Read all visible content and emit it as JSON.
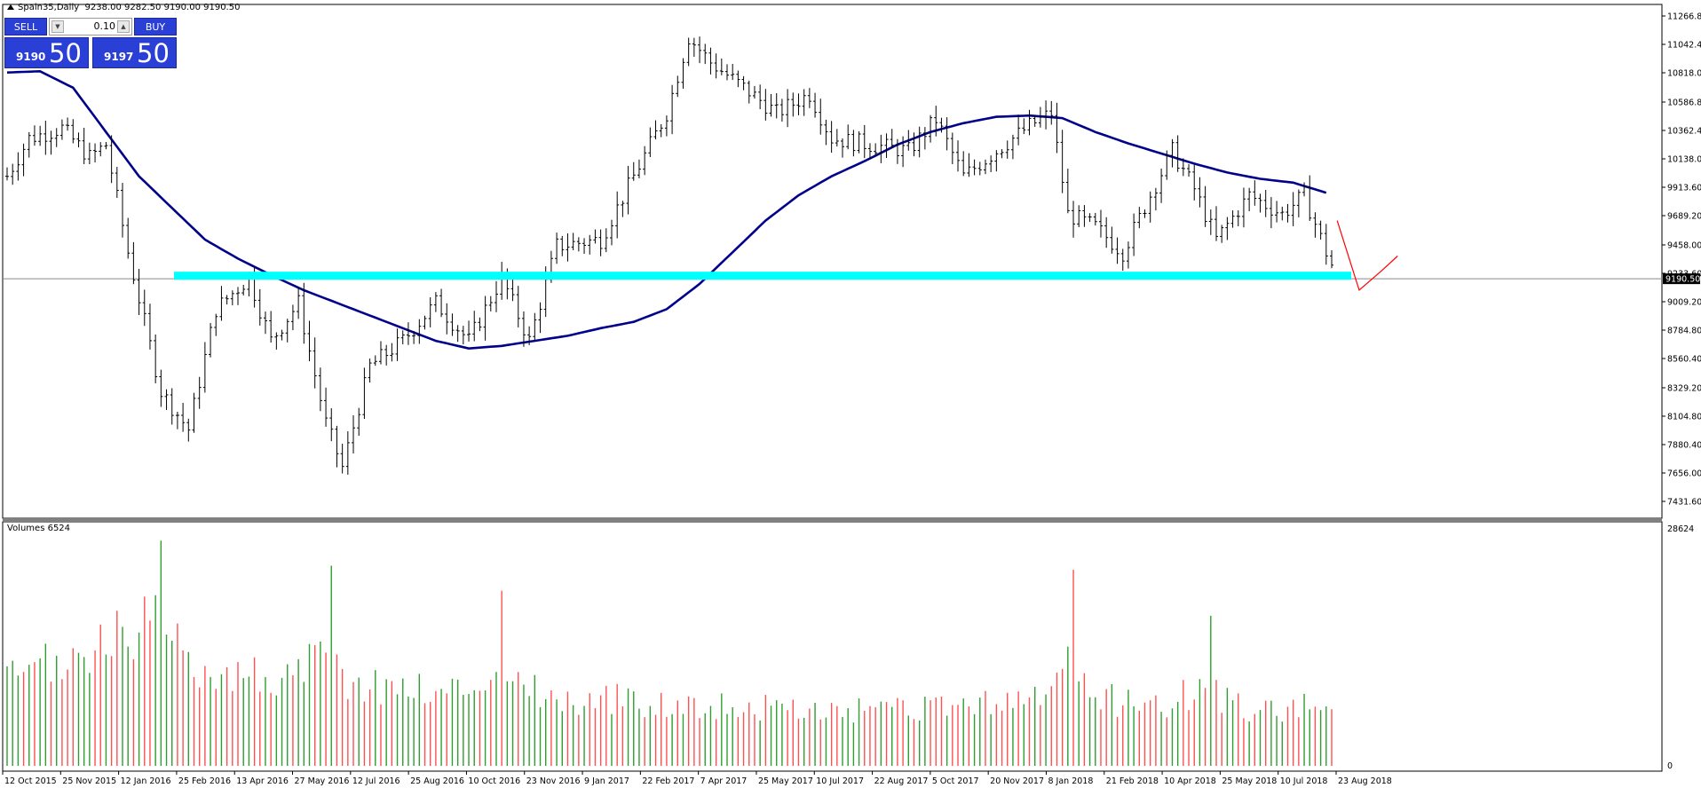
{
  "header": {
    "symbol": "Spain35,Daily",
    "ohlc": "9238.00 9282.50 9190.00 9190.50"
  },
  "trade_panel": {
    "sell_label": "SELL",
    "buy_label": "BUY",
    "lot": "0.10",
    "sell_small": "9190",
    "sell_big": "50",
    "buy_small": "9197",
    "buy_big": "50"
  },
  "volume_label": "Volumes 6524",
  "colors": {
    "candle": "#000000",
    "ma": "#00008b",
    "support": "#00ffff",
    "forecast": "#ff0000",
    "vol_up": "#2e9e2e",
    "vol_down": "#ff5050"
  },
  "chart_data": [
    {
      "type": "line",
      "panel": "price",
      "title": "Spain35,Daily",
      "y_tick_labels": [
        "11266.80",
        "11042.40",
        "10818.00",
        "10586.80",
        "10362.40",
        "10138.00",
        "9913.60",
        "9689.20",
        "9458.00",
        "9233.60",
        "9009.20",
        "8784.80",
        "8560.40",
        "8329.20",
        "8104.80",
        "7880.40",
        "7656.00",
        "7431.60"
      ],
      "ylim": [
        7431.6,
        11266.8
      ],
      "current_price_label": "9190.50",
      "x_tick_labels": [
        "12 Oct 2015",
        "25 Nov 2015",
        "12 Jan 2016",
        "25 Feb 2016",
        "13 Apr 2016",
        "27 May 2016",
        "12 Jul 2016",
        "25 Aug 2016",
        "10 Oct 2016",
        "23 Nov 2016",
        "9 Jan 2017",
        "22 Feb 2017",
        "7 Apr 2017",
        "25 May 2017",
        "10 Jul 2017",
        "22 Aug 2017",
        "5 Oct 2017",
        "20 Nov 2017",
        "8 Jan 2018",
        "21 Feb 2018",
        "10 Apr 2018",
        "25 May 2018",
        "10 Jul 2018",
        "23 Aug 2018"
      ],
      "price_anchors": [
        [
          0,
          10000
        ],
        [
          4,
          10300
        ],
        [
          10,
          10380
        ],
        [
          15,
          10150
        ],
        [
          18,
          10250
        ],
        [
          22,
          9400
        ],
        [
          28,
          8300
        ],
        [
          33,
          8000
        ],
        [
          38,
          8950
        ],
        [
          44,
          9200
        ],
        [
          48,
          8700
        ],
        [
          53,
          9000
        ],
        [
          58,
          8050
        ],
        [
          61,
          7700
        ],
        [
          66,
          8500
        ],
        [
          72,
          8700
        ],
        [
          78,
          9000
        ],
        [
          84,
          8700
        ],
        [
          90,
          9200
        ],
        [
          95,
          8700
        ],
        [
          100,
          9450
        ],
        [
          108,
          9500
        ],
        [
          114,
          10000
        ],
        [
          120,
          10500
        ],
        [
          124,
          11100
        ],
        [
          128,
          10900
        ],
        [
          134,
          10700
        ],
        [
          140,
          10500
        ],
        [
          146,
          10650
        ],
        [
          150,
          10300
        ],
        [
          157,
          10250
        ],
        [
          164,
          10200
        ],
        [
          169,
          10450
        ],
        [
          174,
          10000
        ],
        [
          180,
          10200
        ],
        [
          186,
          10400
        ],
        [
          190,
          10500
        ],
        [
          193,
          9700
        ],
        [
          198,
          9600
        ],
        [
          203,
          9400
        ],
        [
          208,
          9850
        ],
        [
          212,
          10200
        ],
        [
          216,
          9900
        ],
        [
          220,
          9500
        ],
        [
          226,
          9850
        ],
        [
          232,
          9700
        ],
        [
          236,
          9850
        ],
        [
          240,
          9400
        ],
        [
          242,
          9200
        ]
      ],
      "moving_average_anchors": [
        [
          0,
          10820
        ],
        [
          6,
          10830
        ],
        [
          12,
          10700
        ],
        [
          18,
          10350
        ],
        [
          24,
          10000
        ],
        [
          30,
          9750
        ],
        [
          36,
          9500
        ],
        [
          42,
          9350
        ],
        [
          48,
          9220
        ],
        [
          54,
          9100
        ],
        [
          60,
          9000
        ],
        [
          66,
          8900
        ],
        [
          72,
          8800
        ],
        [
          78,
          8700
        ],
        [
          84,
          8640
        ],
        [
          90,
          8660
        ],
        [
          96,
          8700
        ],
        [
          102,
          8740
        ],
        [
          108,
          8800
        ],
        [
          114,
          8850
        ],
        [
          120,
          8950
        ],
        [
          126,
          9150
        ],
        [
          132,
          9400
        ],
        [
          138,
          9650
        ],
        [
          144,
          9850
        ],
        [
          150,
          10000
        ],
        [
          156,
          10120
        ],
        [
          162,
          10250
        ],
        [
          168,
          10350
        ],
        [
          174,
          10420
        ],
        [
          180,
          10470
        ],
        [
          186,
          10480
        ],
        [
          192,
          10460
        ],
        [
          198,
          10350
        ],
        [
          204,
          10260
        ],
        [
          210,
          10180
        ],
        [
          216,
          10100
        ],
        [
          222,
          10030
        ],
        [
          228,
          9980
        ],
        [
          234,
          9950
        ],
        [
          240,
          9870
        ]
      ],
      "support_level": 9190,
      "forecast_path": [
        [
          242,
          9650
        ],
        [
          246,
          9100
        ],
        [
          250,
          9250
        ],
        [
          253,
          9370
        ]
      ]
    },
    {
      "type": "bar",
      "panel": "volume",
      "title": "Volumes 6524",
      "y_tick_labels": [
        "28624",
        "0"
      ],
      "ylim": [
        0,
        28624
      ],
      "bar_count": 242,
      "volume_anchors": [
        [
          0,
          10000
        ],
        [
          10,
          12500
        ],
        [
          20,
          15000
        ],
        [
          26,
          17500
        ],
        [
          32,
          13000
        ],
        [
          42,
          11000
        ],
        [
          52,
          10500
        ],
        [
          58,
          13500
        ],
        [
          62,
          10000
        ],
        [
          72,
          9500
        ],
        [
          82,
          9000
        ],
        [
          90,
          12000
        ],
        [
          96,
          9500
        ],
        [
          100,
          7500
        ],
        [
          108,
          8000
        ],
        [
          120,
          7500
        ],
        [
          135,
          7000
        ],
        [
          150,
          6500
        ],
        [
          160,
          6500
        ],
        [
          170,
          6800
        ],
        [
          190,
          8500
        ],
        [
          194,
          13000
        ],
        [
          198,
          8000
        ],
        [
          210,
          7500
        ],
        [
          218,
          9000
        ],
        [
          226,
          6800
        ],
        [
          242,
          7000
        ]
      ],
      "volume_spikes": [
        [
          28,
          27000
        ],
        [
          59,
          24000
        ],
        [
          90,
          21000
        ],
        [
          194,
          23500
        ],
        [
          219,
          18000
        ]
      ]
    }
  ]
}
